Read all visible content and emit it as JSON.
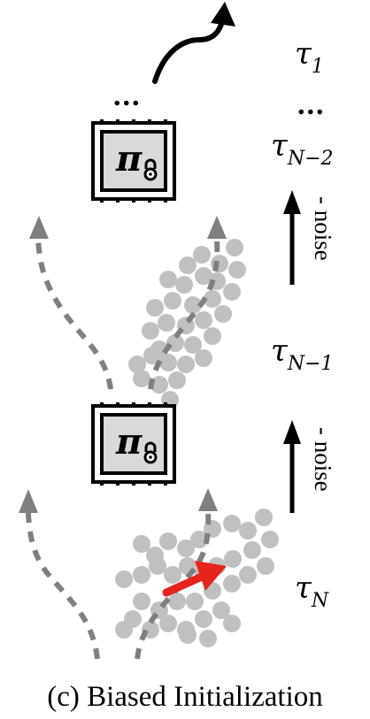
{
  "labels": {
    "tau_1": {
      "base": "τ",
      "sub": "1"
    },
    "tau_n_minus_2": {
      "base": "τ",
      "sub": "N−2"
    },
    "tau_n_minus_1": {
      "base": "τ",
      "sub": "N−1"
    },
    "tau_n": {
      "base": "τ",
      "sub": "N"
    },
    "ellipsis": "...",
    "noise_top": "- noise",
    "noise_bottom": "- noise",
    "policy_symbol": "π"
  },
  "caption": "(c) Biased Initialization",
  "colors": {
    "arrow_black": "#000000",
    "dashed_gray": "#7f7f7f",
    "sample_dot": "#c0c0c0",
    "bias_arrow": "#e5231b",
    "policy_fill": "#d9d9d9"
  }
}
